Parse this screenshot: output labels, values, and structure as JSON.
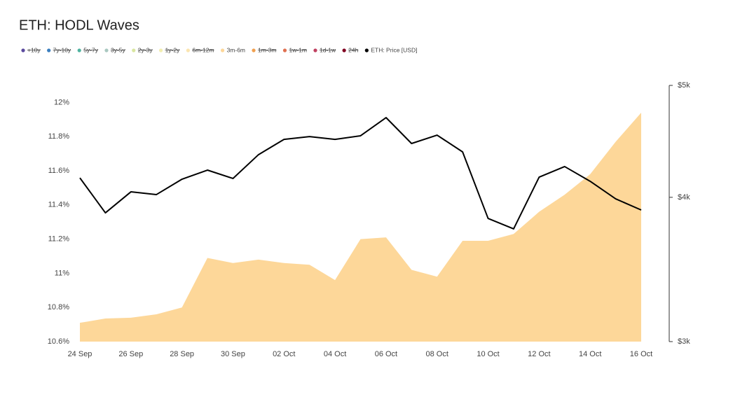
{
  "chart_data": {
    "type": "area-line",
    "title": "ETH: HODL Waves",
    "categories": [
      "24 Sep",
      null,
      "26 Sep",
      null,
      "28 Sep",
      null,
      "30 Sep",
      null,
      "02 Oct",
      null,
      "04 Oct",
      null,
      "06 Oct",
      null,
      "08 Oct",
      null,
      "10 Oct",
      null,
      "12 Oct",
      null,
      "14 Oct",
      null,
      "16 Oct"
    ],
    "series": [
      {
        "name": "+10y",
        "color": "#5b4a9e",
        "hidden": true
      },
      {
        "name": "7y-10y",
        "color": "#3b7fbf",
        "hidden": true
      },
      {
        "name": "5y-7y",
        "color": "#4fb3a0",
        "hidden": true
      },
      {
        "name": "3y-5y",
        "color": "#a9c8c0",
        "hidden": true
      },
      {
        "name": "2y-3y",
        "color": "#d9e6a0",
        "hidden": true
      },
      {
        "name": "1y-2y",
        "color": "#f2eeb0",
        "hidden": true
      },
      {
        "name": "6m-12m",
        "color": "#fbe5b0",
        "hidden": true
      },
      {
        "name": "3m-6m",
        "color": "#fdd799",
        "type": "area",
        "values": [
          10.71,
          10.735,
          10.74,
          10.76,
          10.8,
          11.09,
          11.06,
          11.08,
          11.06,
          11.05,
          10.96,
          11.2,
          11.21,
          11.02,
          10.98,
          11.19,
          11.19,
          11.23,
          11.36,
          11.46,
          11.58,
          11.77,
          11.94
        ]
      },
      {
        "name": "1m-3m",
        "color": "#f0a050",
        "hidden": true
      },
      {
        "name": "1w-1m",
        "color": "#e07050",
        "hidden": true
      },
      {
        "name": "1d-1w",
        "color": "#c04060",
        "hidden": true
      },
      {
        "name": "24h",
        "color": "#800020",
        "hidden": true
      },
      {
        "name": "ETH: Price [USD]",
        "color": "#000000",
        "type": "line",
        "axis": "y2",
        "values": [
          4158,
          3878,
          4044,
          4022,
          4147,
          4223,
          4153,
          4355,
          4490,
          4515,
          4490,
          4522,
          4689,
          4453,
          4528,
          4379,
          3835,
          3756,
          4164,
          4253,
          4130,
          3988,
          3900
        ]
      }
    ],
    "ylim": [
      10.6,
      12.1
    ],
    "yticks": [
      {
        "value": 10.6,
        "label": "10.6%"
      },
      {
        "value": 10.8,
        "label": "10.8%"
      },
      {
        "value": 11,
        "label": "11%"
      },
      {
        "value": 11.2,
        "label": "11.2%"
      },
      {
        "value": 11.4,
        "label": "11.4%"
      },
      {
        "value": 11.6,
        "label": "11.6%"
      },
      {
        "value": 11.8,
        "label": "11.8%"
      },
      {
        "value": 12,
        "label": "12%"
      }
    ],
    "y2lim": [
      3000,
      5000
    ],
    "y2scale": "log",
    "y2ticks": [
      {
        "value": 3000,
        "label": "$3k"
      },
      {
        "value": 4000,
        "label": "$4k"
      },
      {
        "value": 5000,
        "label": "$5k"
      }
    ],
    "grid": false
  }
}
